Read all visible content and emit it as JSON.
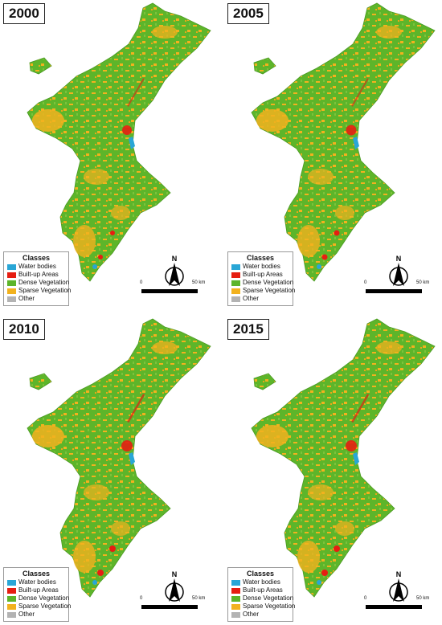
{
  "panels": [
    {
      "year": "2000"
    },
    {
      "year": "2005"
    },
    {
      "year": "2010"
    },
    {
      "year": "2015"
    }
  ],
  "legend": {
    "title": "Classes",
    "items": [
      {
        "label": "Water bodies",
        "color": "#29a6d6"
      },
      {
        "label": "Built-up Areas",
        "color": "#e61e12"
      },
      {
        "label": "Dense Vegetation",
        "color": "#5db52a"
      },
      {
        "label": "Sparse Vegetation",
        "color": "#f2b21e"
      },
      {
        "label": "Other",
        "color": "#b3b3b3"
      }
    ]
  },
  "north_arrow": {
    "label": "N"
  },
  "scale_bar": {
    "start": "0",
    "end": "50 km"
  }
}
